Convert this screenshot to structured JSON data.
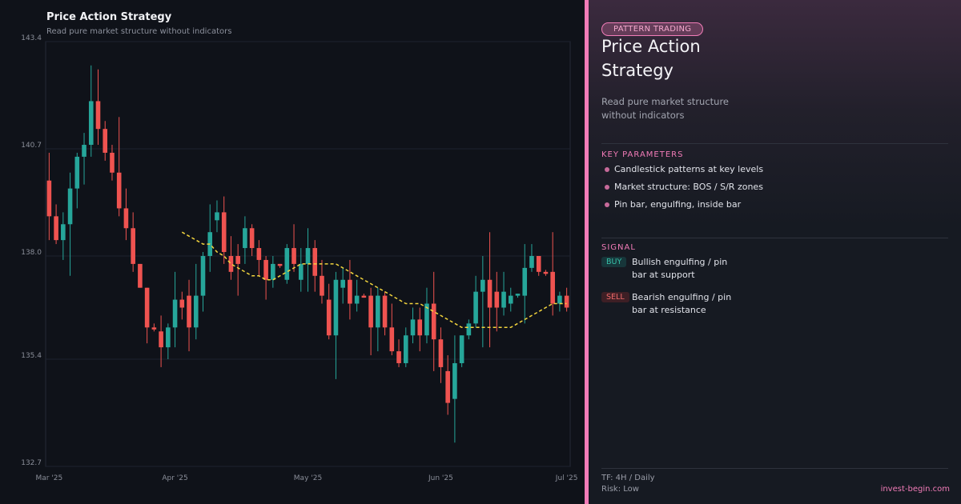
{
  "chart_data": {
    "type": "candlestick",
    "title": "Price Action Strategy",
    "subtitle": "Read pure market structure without indicators",
    "categories": [
      "Mar '25",
      null,
      null,
      null,
      null,
      null,
      null,
      null,
      null,
      null,
      null,
      null,
      null,
      null,
      null,
      null,
      null,
      null,
      "Apr '25",
      null,
      null,
      null,
      null,
      null,
      null,
      null,
      null,
      null,
      null,
      null,
      null,
      null,
      null,
      null,
      null,
      null,
      null,
      "May '25",
      null,
      null,
      null,
      null,
      null,
      null,
      null,
      null,
      null,
      null,
      null,
      null,
      null,
      null,
      null,
      null,
      null,
      null,
      "Jun '25",
      null,
      null,
      null,
      null,
      null,
      null,
      null,
      null,
      null,
      null,
      null,
      null,
      null,
      null,
      null,
      null,
      null,
      "Jul '25"
    ],
    "open": [
      139.9,
      139.0,
      138.4,
      138.8,
      139.7,
      140.5,
      140.8,
      141.9,
      141.2,
      140.6,
      140.1,
      139.2,
      138.7,
      137.8,
      137.2,
      136.2,
      136.1,
      135.7,
      136.2,
      136.9,
      137.0,
      136.2,
      137.0,
      138.0,
      138.9,
      139.1,
      138.0,
      138.0,
      138.2,
      138.7,
      138.2,
      137.9,
      137.4,
      137.8,
      137.4,
      138.2,
      137.4,
      137.8,
      138.2,
      137.5,
      136.9,
      136.0,
      137.2,
      137.4,
      136.8,
      137.0,
      137.0,
      136.2,
      137.0,
      136.2,
      135.6,
      135.3,
      136.0,
      136.4,
      136.0,
      136.8,
      135.9,
      135.1,
      134.4,
      135.3,
      136.0,
      136.3,
      137.1,
      137.4,
      137.1,
      136.7,
      136.8,
      137.0,
      137.0,
      137.7,
      138.0,
      137.6,
      137.6,
      136.8,
      137.0
    ],
    "high": [
      140.6,
      139.3,
      139.1,
      140.1,
      140.6,
      141.1,
      142.8,
      142.7,
      141.4,
      140.8,
      141.5,
      139.7,
      139.1,
      137.8,
      137.2,
      136.3,
      136.5,
      136.3,
      137.6,
      137.1,
      137.4,
      137.8,
      138.1,
      139.3,
      139.4,
      139.5,
      138.5,
      138.3,
      139.0,
      138.8,
      138.4,
      138.0,
      138.0,
      137.8,
      138.3,
      138.8,
      138.2,
      138.7,
      138.4,
      137.9,
      137.3,
      137.6,
      137.7,
      137.9,
      137.4,
      137.05,
      137.2,
      137.2,
      137.1,
      136.8,
      135.9,
      136.2,
      136.7,
      136.7,
      137.2,
      137.6,
      136.2,
      135.5,
      136.0,
      136.0,
      136.4,
      137.5,
      138.0,
      138.6,
      137.6,
      137.6,
      137.2,
      137.05,
      138.3,
      138.3,
      138.0,
      137.65,
      138.6,
      137.1,
      137.2
    ],
    "low": [
      138.4,
      138.3,
      137.9,
      137.5,
      139.2,
      139.8,
      140.5,
      140.8,
      140.4,
      139.9,
      139.0,
      138.4,
      137.6,
      137.2,
      135.8,
      136.1,
      135.2,
      135.4,
      135.7,
      136.4,
      135.6,
      135.9,
      136.6,
      137.6,
      138.6,
      137.8,
      137.4,
      137.0,
      137.8,
      138.0,
      137.5,
      136.9,
      137.2,
      137.7,
      137.3,
      137.6,
      137.1,
      137.1,
      137.1,
      136.8,
      135.9,
      134.9,
      136.8,
      136.4,
      136.6,
      136.95,
      135.5,
      135.6,
      136.0,
      135.5,
      135.2,
      135.2,
      135.8,
      135.6,
      135.8,
      135.1,
      134.8,
      134.0,
      133.3,
      135.2,
      135.9,
      136.2,
      135.7,
      135.7,
      136.1,
      136.5,
      136.6,
      136.95,
      136.3,
      137.6,
      137.5,
      137.5,
      136.5,
      136.6,
      136.6
    ],
    "close": [
      139.0,
      138.4,
      138.8,
      139.7,
      140.5,
      140.8,
      141.9,
      141.2,
      140.6,
      140.1,
      139.2,
      138.7,
      137.8,
      137.2,
      136.2,
      136.15,
      135.7,
      136.2,
      136.9,
      136.7,
      136.2,
      137.0,
      138.0,
      138.6,
      139.1,
      138.1,
      137.6,
      137.8,
      138.7,
      138.2,
      137.9,
      137.4,
      137.8,
      137.75,
      138.2,
      137.8,
      137.8,
      138.2,
      137.5,
      137.0,
      136.0,
      137.4,
      137.4,
      136.8,
      137.0,
      136.95,
      136.2,
      137.0,
      136.2,
      135.6,
      135.3,
      136.0,
      136.4,
      136.0,
      136.8,
      135.9,
      135.2,
      134.3,
      135.3,
      136.0,
      136.3,
      137.1,
      137.4,
      136.7,
      136.7,
      137.1,
      137.0,
      137.05,
      137.7,
      138.0,
      137.6,
      137.55,
      136.8,
      137.0,
      136.7
    ],
    "moving_average": [
      null,
      null,
      null,
      null,
      null,
      null,
      null,
      null,
      null,
      null,
      null,
      null,
      null,
      null,
      null,
      null,
      null,
      null,
      null,
      138.6,
      138.5,
      138.4,
      138.3,
      138.3,
      138.1,
      138.0,
      137.8,
      137.7,
      137.6,
      137.5,
      137.5,
      137.4,
      137.4,
      137.5,
      137.6,
      137.7,
      137.8,
      137.8,
      137.8,
      137.8,
      137.8,
      137.8,
      137.7,
      137.6,
      137.5,
      137.4,
      137.3,
      137.2,
      137.1,
      137.0,
      136.9,
      136.8,
      136.8,
      136.8,
      136.7,
      136.6,
      136.5,
      136.4,
      136.3,
      136.2,
      136.2,
      136.2,
      136.2,
      136.2,
      136.2,
      136.2,
      136.2,
      136.3,
      136.4,
      136.5,
      136.6,
      136.7,
      136.8,
      136.8,
      136.8
    ],
    "up_color": "#26a69a",
    "down_color": "#ef5350",
    "ma_color": "#f2d43d",
    "ylim": [
      132.7,
      143.4
    ],
    "yticks": [
      132.7,
      135.4,
      {
        "value": 138,
        "label": "138.0"
      },
      140.7,
      143.4
    ],
    "grid": true
  },
  "panel": {
    "badge": "PATTERN TRADING",
    "title": "Price Action Strategy",
    "subtitle": "Read pure market structure without indicators",
    "params_heading": "KEY PARAMETERS",
    "params": [
      "Candlestick patterns at key levels",
      "Market structure: BOS / S/R zones",
      "Pin bar, engulfing, inside bar"
    ],
    "signal_heading": "SIGNAL",
    "signals": [
      {
        "tag": "BUY",
        "text": "Bullish engulfing / pin bar at support"
      },
      {
        "tag": "SELL",
        "text": "Bearish engulfing / pin bar at resistance"
      }
    ],
    "timeframe": "TF: 4H / Daily",
    "risk": "Risk: Low",
    "site": "invest-begin.com"
  }
}
